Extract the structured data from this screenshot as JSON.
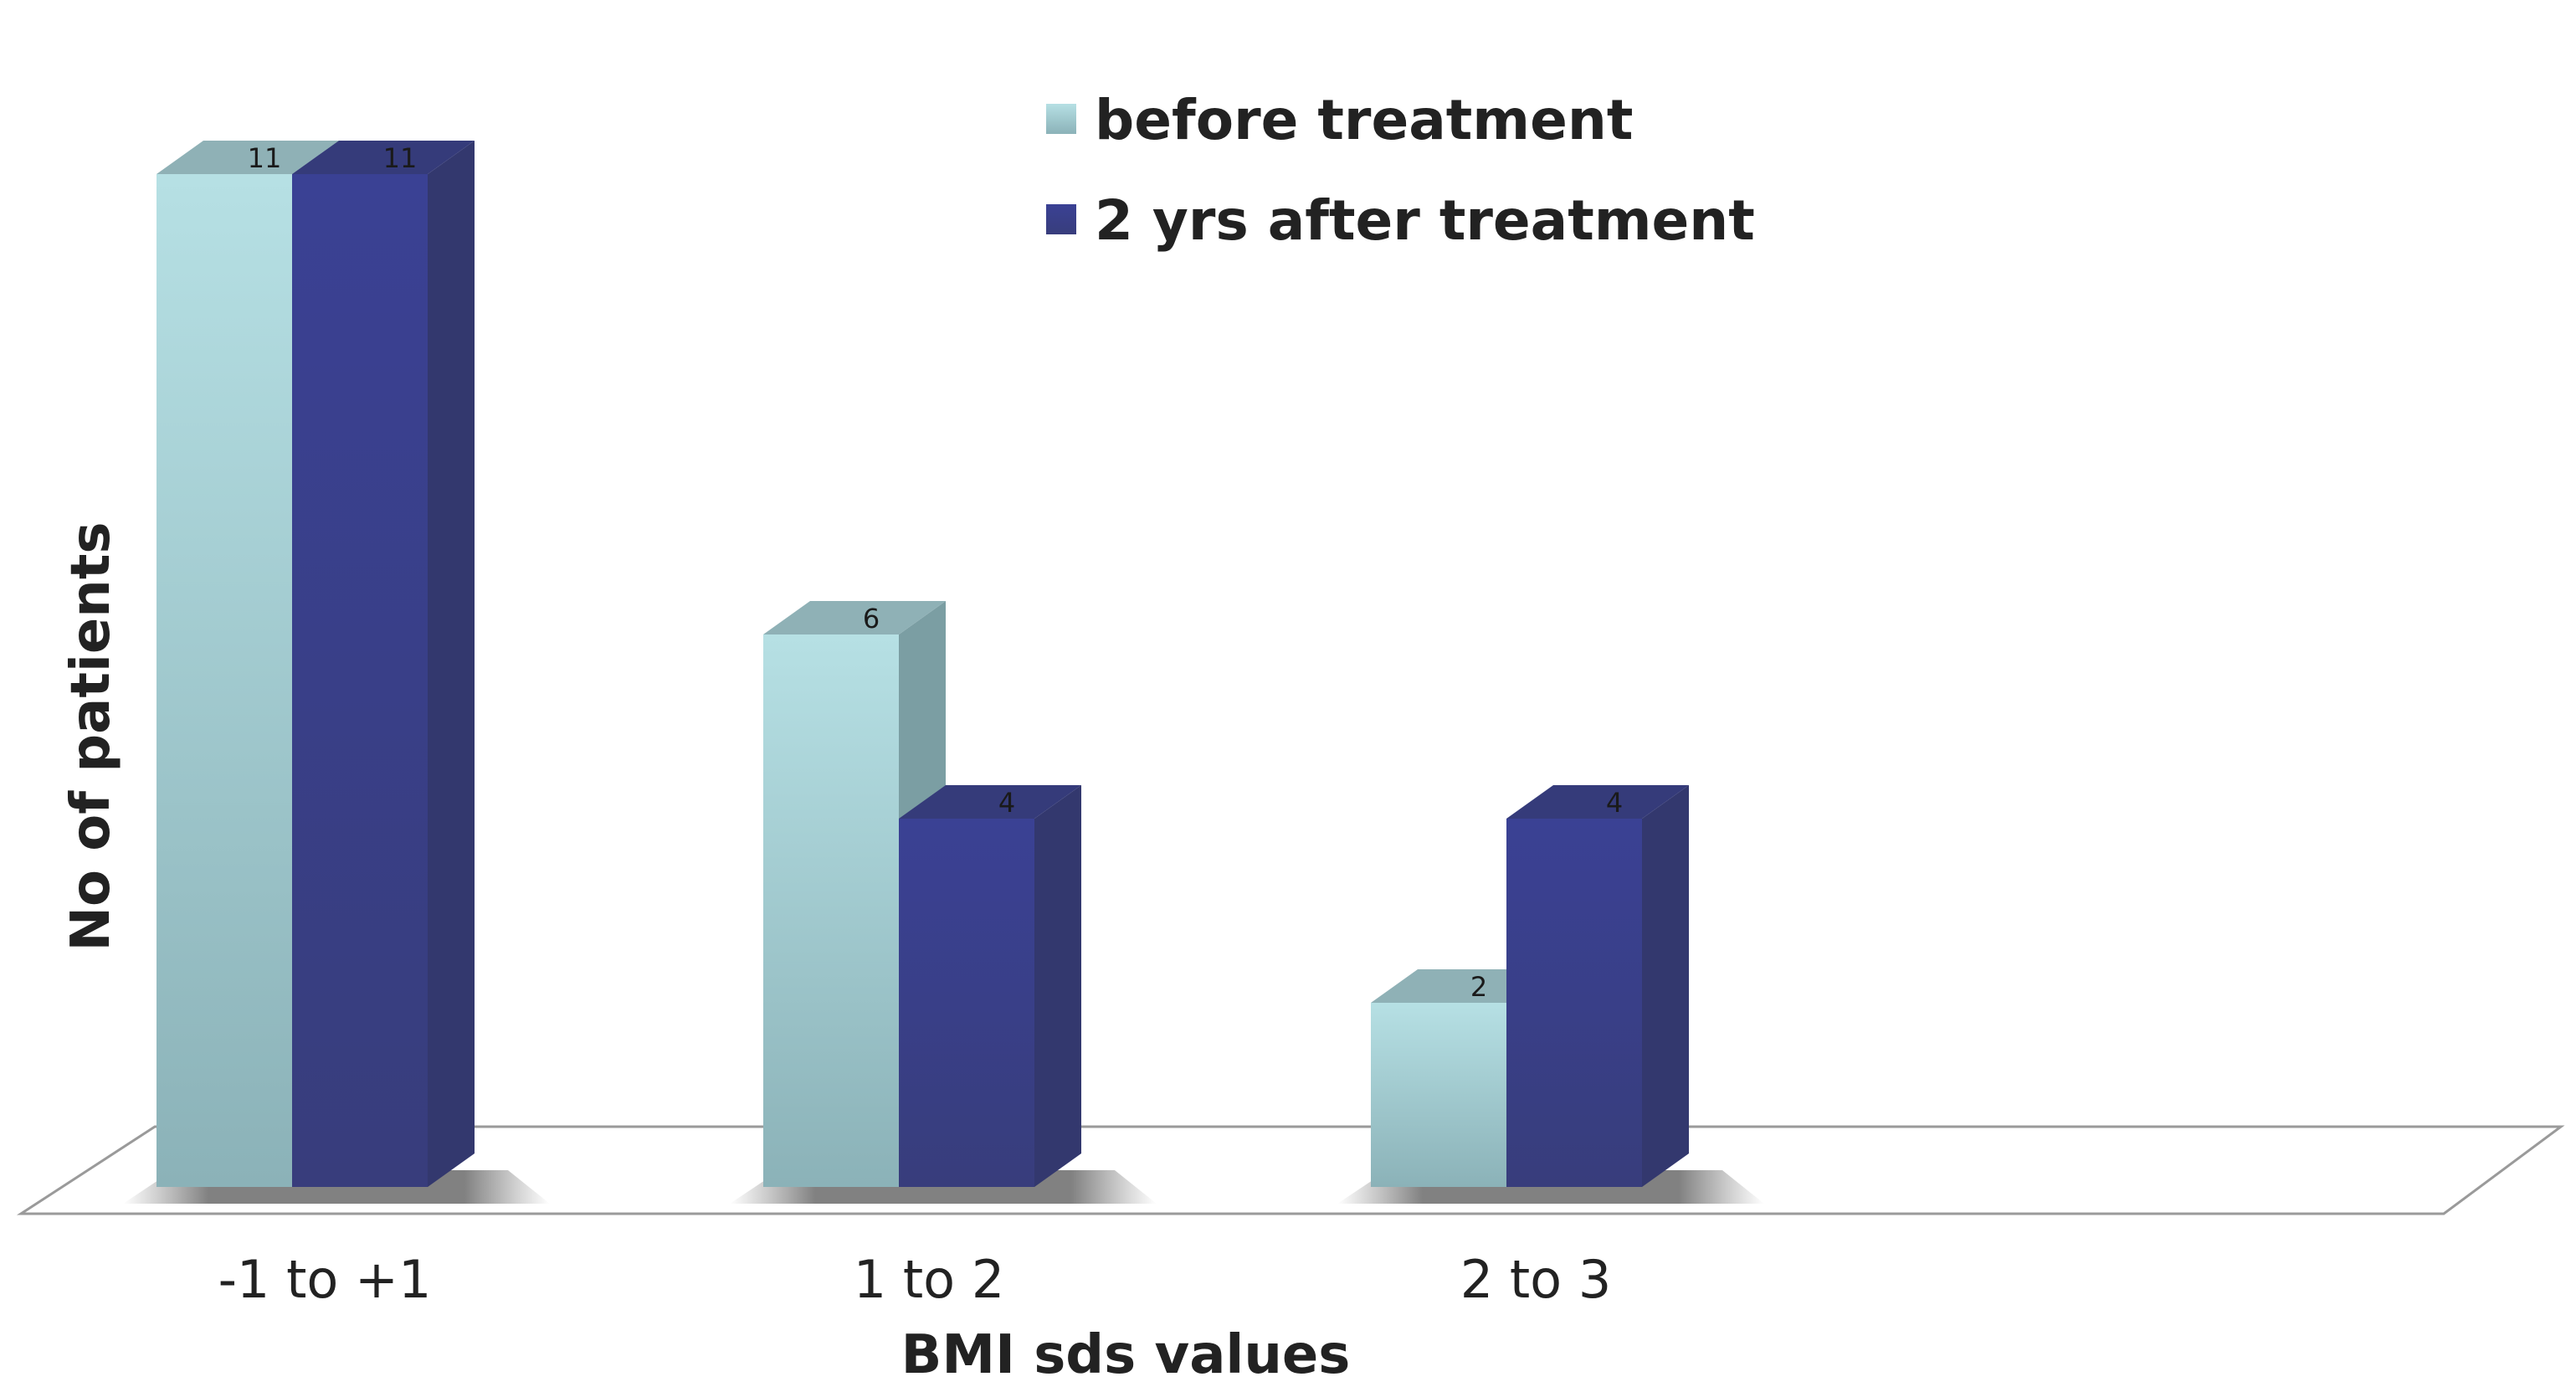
{
  "chart_data": {
    "type": "bar",
    "categories": [
      "-1 to +1",
      "1 to 2",
      "2 to 3"
    ],
    "series": [
      {
        "name": "before treatment",
        "values": [
          11,
          6,
          2
        ],
        "color": "#a6d6dc"
      },
      {
        "name": "2 yrs after treatment",
        "values": [
          11,
          4,
          4
        ],
        "color": "#353b8f"
      }
    ],
    "title": "",
    "xlabel": "BMI sds values",
    "ylabel": "No of patients",
    "ylim": [
      0,
      11
    ],
    "grid": false,
    "legend_position": "top-center",
    "style": "3d-column",
    "data_labels": true
  }
}
